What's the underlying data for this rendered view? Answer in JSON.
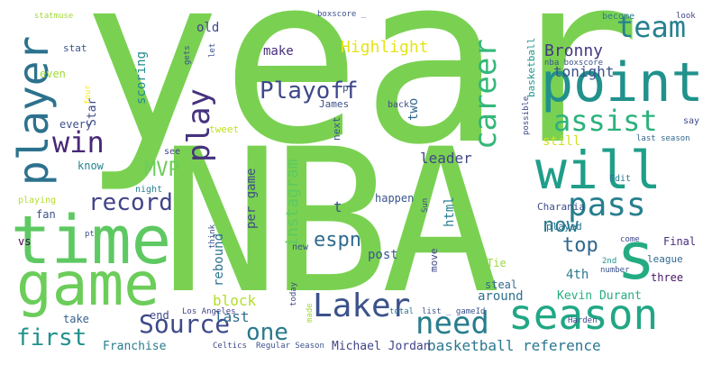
{
  "words": [
    {
      "text": "year",
      "color": "#7ad151",
      "vertical": false
    },
    {
      "text": "NBA",
      "color": "#7ad151",
      "vertical": false
    },
    {
      "text": "time",
      "color": "#5ec962",
      "vertical": false
    },
    {
      "text": "game",
      "color": "#6ccd5a",
      "vertical": false
    },
    {
      "text": "point",
      "color": "#21918c",
      "vertical": false
    },
    {
      "text": "will",
      "color": "#1f9e89",
      "vertical": false
    },
    {
      "text": "s",
      "color": "#25ab82",
      "vertical": false
    },
    {
      "text": "season",
      "color": "#22a785",
      "vertical": false
    },
    {
      "text": "pass",
      "color": "#277f8e",
      "vertical": false
    },
    {
      "text": "player",
      "color": "#2c728e",
      "vertical": true
    },
    {
      "text": "Laker",
      "color": "#3b528b",
      "vertical": false
    },
    {
      "text": "need",
      "color": "#287d8e",
      "vertical": false
    },
    {
      "text": "assist",
      "color": "#2db27d",
      "vertical": false
    },
    {
      "text": "team",
      "color": "#26828e",
      "vertical": false
    },
    {
      "text": "career",
      "color": "#35b779",
      "vertical": true
    },
    {
      "text": "play",
      "color": "#46327e",
      "vertical": true
    },
    {
      "text": "win",
      "color": "#482878",
      "vertical": false
    },
    {
      "text": "Playoff",
      "color": "#3e4989",
      "vertical": false
    },
    {
      "text": "Source",
      "color": "#3e4a89",
      "vertical": false
    },
    {
      "text": "record",
      "color": "#414487",
      "vertical": false
    },
    {
      "text": "first",
      "color": "#21918c",
      "vertical": false
    },
    {
      "text": "one",
      "color": "#29798e",
      "vertical": false
    },
    {
      "text": "MVP",
      "color": "#6ccd5a",
      "vertical": false
    },
    {
      "text": "top",
      "color": "#31688e",
      "vertical": false
    },
    {
      "text": "now",
      "color": "#2a788e",
      "vertical": false
    },
    {
      "text": "Bronny",
      "color": "#443983",
      "vertical": false
    },
    {
      "text": "Highlight",
      "color": "#e5e419",
      "vertical": false
    },
    {
      "text": "tonight",
      "color": "#3b528b",
      "vertical": false
    },
    {
      "text": "basketball reference",
      "color": "#2a778e",
      "vertical": false
    },
    {
      "text": "instagram",
      "color": "#5ec962",
      "vertical": true
    },
    {
      "text": "per game",
      "color": "#3e4c8a",
      "vertical": true
    },
    {
      "text": "espn",
      "color": "#2f6b8e",
      "vertical": false
    },
    {
      "text": "leader",
      "color": "#3f4788",
      "vertical": false
    },
    {
      "text": "block",
      "color": "#b5de2b",
      "vertical": false
    },
    {
      "text": "last",
      "color": "#2e6e8e",
      "vertical": false
    },
    {
      "text": "rebound",
      "color": "#2c738e",
      "vertical": true
    },
    {
      "text": "scoring",
      "color": "#228b8d",
      "vertical": true
    },
    {
      "text": "old",
      "color": "#3f4889",
      "vertical": false
    },
    {
      "text": "make",
      "color": "#472d7b",
      "vertical": false
    },
    {
      "text": "two",
      "color": "#31688e",
      "vertical": true
    },
    {
      "text": "still",
      "color": "#d0e11c",
      "vertical": false
    },
    {
      "text": "around",
      "color": "#2d718e",
      "vertical": false
    },
    {
      "text": "Kevin Durant",
      "color": "#27ad81",
      "vertical": false
    },
    {
      "text": "Michael Jordan",
      "color": "#414487",
      "vertical": false
    },
    {
      "text": "Franchise",
      "color": "#287c8e",
      "vertical": false
    },
    {
      "text": "steal",
      "color": "#31688e",
      "vertical": false
    },
    {
      "text": "post",
      "color": "#38598c",
      "vertical": false
    },
    {
      "text": "html",
      "color": "#277f8e",
      "vertical": true
    },
    {
      "text": "t",
      "color": "#3b528b",
      "vertical": false
    },
    {
      "text": "4th",
      "color": "#297a8e",
      "vertical": false
    },
    {
      "text": "three",
      "color": "#481769",
      "vertical": false
    },
    {
      "text": "league",
      "color": "#31688e",
      "vertical": false
    },
    {
      "text": "Final",
      "color": "#472d7b",
      "vertical": false
    },
    {
      "text": "played",
      "color": "#2a778e",
      "vertical": false
    },
    {
      "text": "Charania",
      "color": "#3d4e8a",
      "vertical": false
    },
    {
      "text": "happen",
      "color": "#39568c",
      "vertical": false
    },
    {
      "text": "Tie",
      "color": "#9dd93b",
      "vertical": false
    },
    {
      "text": "end",
      "color": "#3f4788",
      "vertical": false
    },
    {
      "text": "take",
      "color": "#355f8d",
      "vertical": false
    },
    {
      "text": "vs",
      "color": "#440154",
      "vertical": false
    },
    {
      "text": "fan",
      "color": "#3b528b",
      "vertical": false
    },
    {
      "text": "know",
      "color": "#26828e",
      "vertical": false
    },
    {
      "text": "every",
      "color": "#3c508b",
      "vertical": false
    },
    {
      "text": "Star",
      "color": "#3e4989",
      "vertical": true
    },
    {
      "text": "even",
      "color": "#a0da39",
      "vertical": false
    },
    {
      "text": "stat",
      "color": "#3b528b",
      "vertical": false
    },
    {
      "text": "statmuse",
      "color": "#a2da37",
      "vertical": false
    },
    {
      "text": "boxscore _",
      "color": "#3b528b",
      "vertical": false
    },
    {
      "text": "become",
      "color": "#287c8e",
      "vertical": false
    },
    {
      "text": "look",
      "color": "#3f4788",
      "vertical": false
    },
    {
      "text": "nba boxscore",
      "color": "#3b528b",
      "vertical": false
    },
    {
      "text": "basketball",
      "color": "#1f968b",
      "vertical": true
    },
    {
      "text": "say",
      "color": "#3e4a89",
      "vertical": false
    },
    {
      "text": "last season",
      "color": "#31688e",
      "vertical": false
    },
    {
      "text": "Edit",
      "color": "#2a768e",
      "vertical": false
    },
    {
      "text": "possible",
      "color": "#3f4788",
      "vertical": true
    },
    {
      "text": "back",
      "color": "#3e4c8a",
      "vertical": false
    },
    {
      "text": "next",
      "color": "#3b528b",
      "vertical": true
    },
    {
      "text": "James",
      "color": "#3b528b",
      "vertical": false
    },
    {
      "text": "tweet",
      "color": "#c2df23",
      "vertical": false
    },
    {
      "text": "see",
      "color": "#3f4788",
      "vertical": false
    },
    {
      "text": "night",
      "color": "#277f8e",
      "vertical": false
    },
    {
      "text": "playing",
      "color": "#b5de2b",
      "vertical": false
    },
    {
      "text": "pt",
      "color": "#3b528b",
      "vertical": false
    },
    {
      "text": "new",
      "color": "#3b528b",
      "vertical": false
    },
    {
      "text": "move",
      "color": "#3f4788",
      "vertical": true
    },
    {
      "text": "today",
      "color": "#3f4788",
      "vertical": true
    },
    {
      "text": "made",
      "color": "#a2da37",
      "vertical": true
    },
    {
      "text": "Los Angeles",
      "color": "#414487",
      "vertical": false
    },
    {
      "text": "Celtics",
      "color": "#3e4a89",
      "vertical": false
    },
    {
      "text": "Regular Season",
      "color": "#3b528b",
      "vertical": false
    },
    {
      "text": "total",
      "color": "#2a778e",
      "vertical": false
    },
    {
      "text": "list _ gameId",
      "color": "#3b528b",
      "vertical": false
    },
    {
      "text": "Harden",
      "color": "#3f4788",
      "vertical": false
    },
    {
      "text": "number",
      "color": "#3b528b",
      "vertical": false
    },
    {
      "text": "2nd",
      "color": "#1f968b",
      "vertical": false
    },
    {
      "text": "come",
      "color": "#3e4a89",
      "vertical": false
    },
    {
      "text": "think",
      "color": "#3b528b",
      "vertical": true
    },
    {
      "text": "Sun",
      "color": "#3b528b",
      "vertical": true
    },
    {
      "text": "gets",
      "color": "#3b528b",
      "vertical": true
    },
    {
      "text": "let",
      "color": "#3b528b",
      "vertical": true
    },
    {
      "text": "four",
      "color": "#fde725",
      "vertical": true
    },
    {
      "text": "p",
      "color": "#3b528b",
      "vertical": false
    }
  ]
}
